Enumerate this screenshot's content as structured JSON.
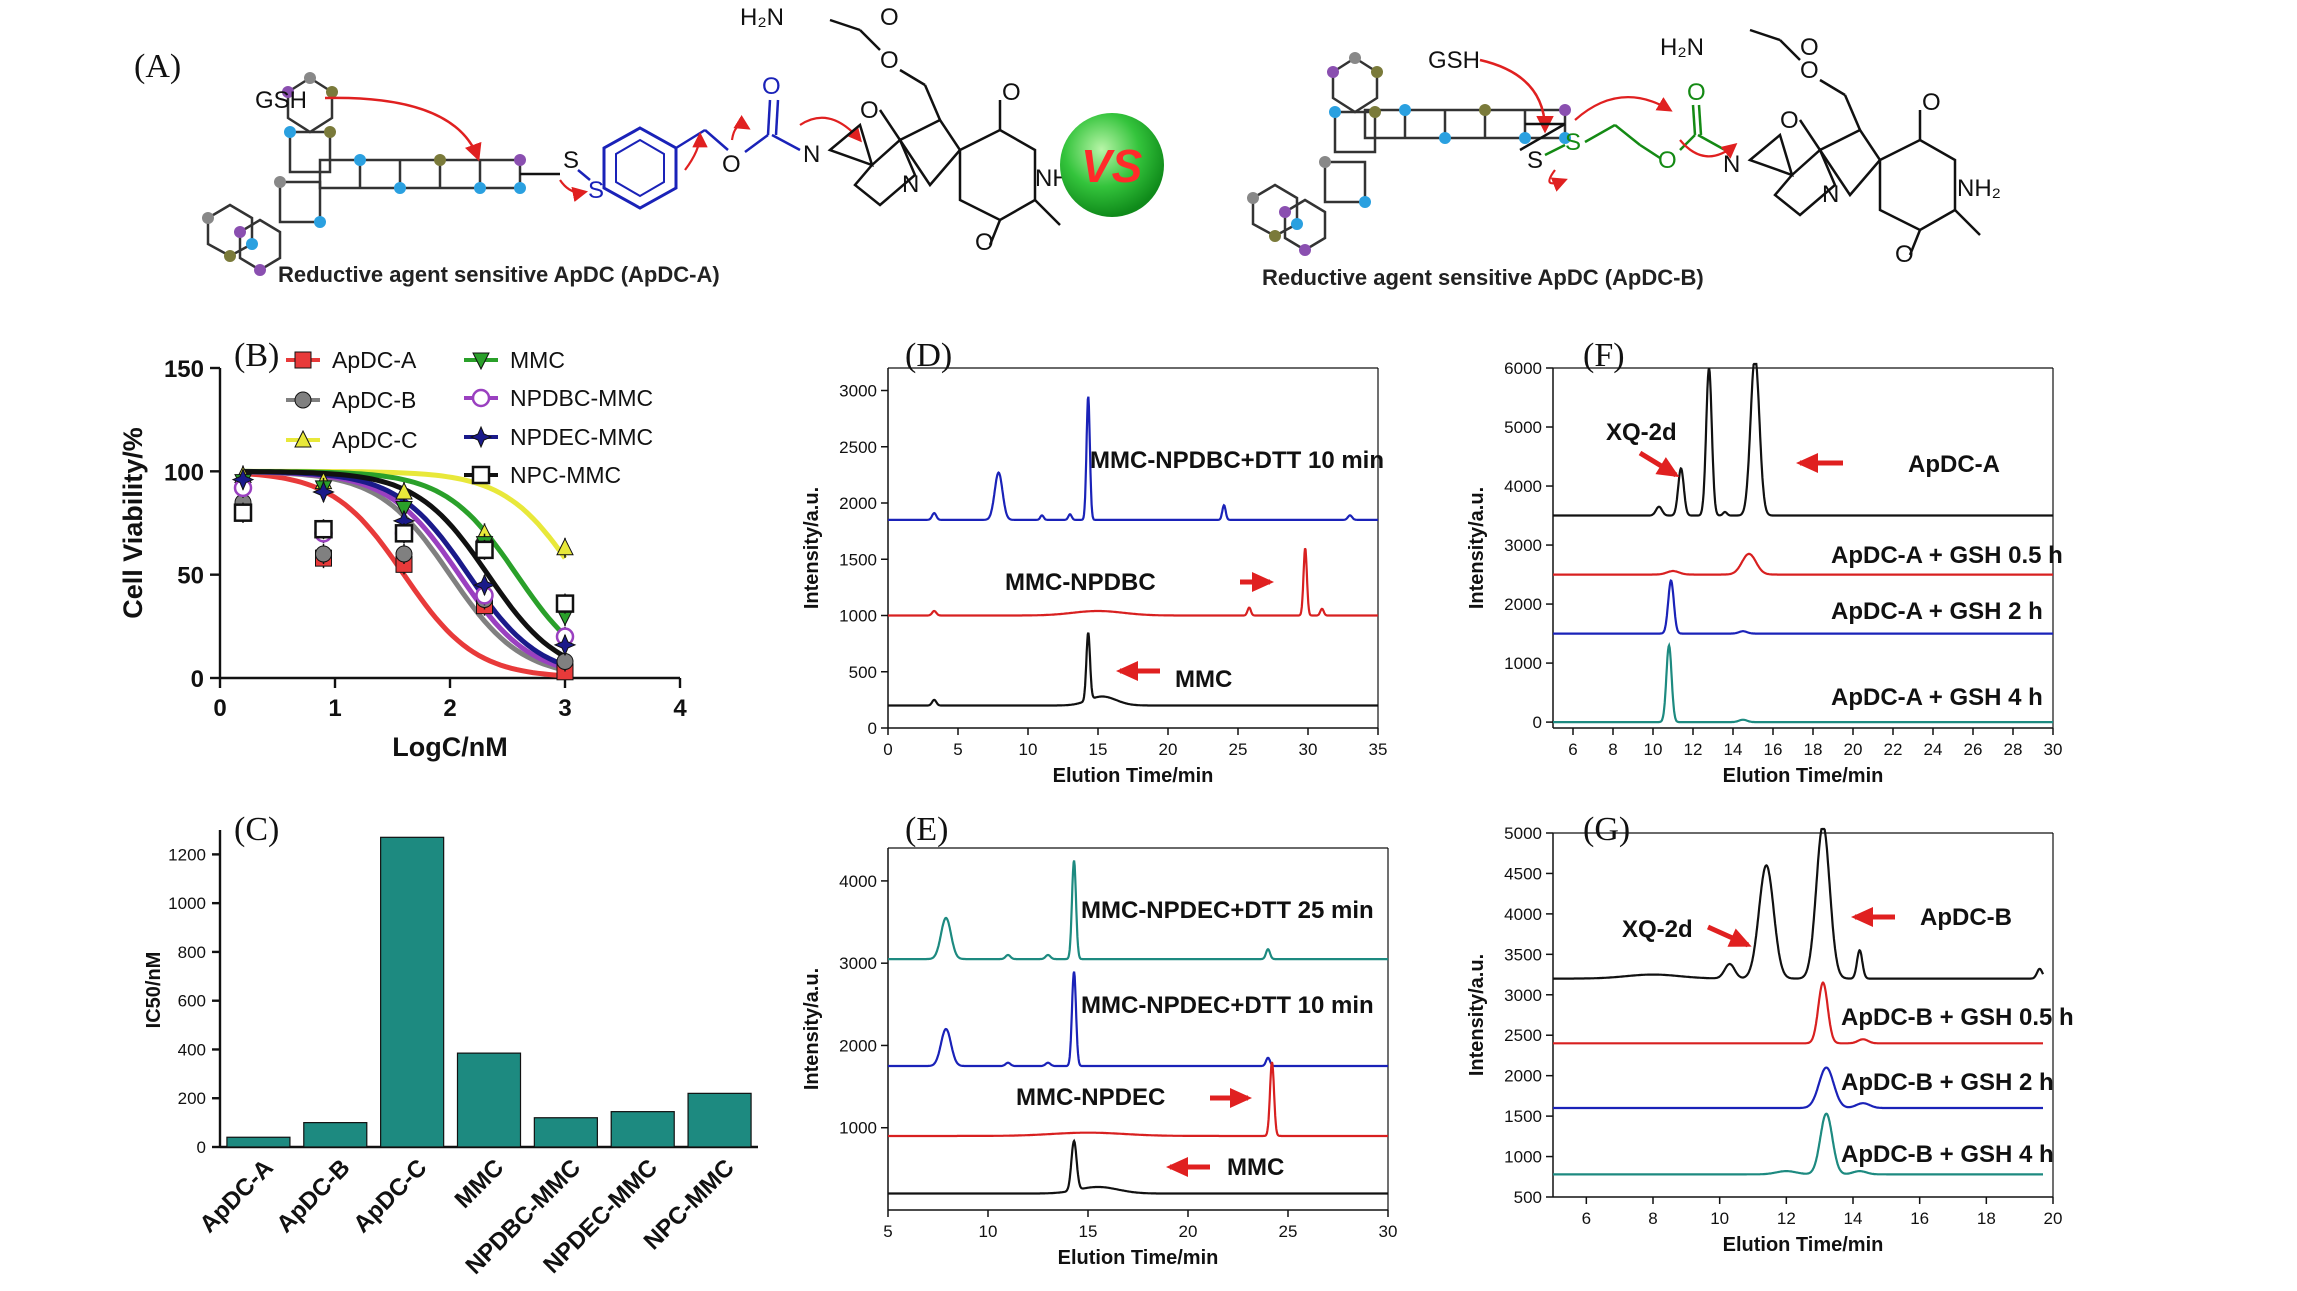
{
  "panel_labels": {
    "a": "(A)",
    "b": "(B)",
    "c": "(C)",
    "d": "(D)",
    "e": "(E)",
    "f": "(F)",
    "g": "(G)"
  },
  "scheme": {
    "gsh_label": "GSH",
    "vs_label": "VS",
    "nh2": "NH₂",
    "h2n": "H₂N",
    "caption_a": "Reductive agent sensitive ApDC (ApDC-A)",
    "caption_b": "Reductive agent sensitive ApDC (ApDC-B)",
    "atoms": {
      "s": "S",
      "o": "O",
      "n": "N"
    },
    "colors": {
      "linker_a": "#1a22b8",
      "linker_b": "#148a14",
      "arrow": "#e02020",
      "vs_ball": "#2ec43a"
    }
  },
  "chart_data": [
    {
      "id": "B",
      "type": "scatter",
      "title": "",
      "xlabel": "LogC/nM",
      "ylabel": "Cell Viability/%",
      "xlim": [
        0,
        4
      ],
      "ylim": [
        0,
        150
      ],
      "xticks": [
        "0",
        "1",
        "2",
        "3",
        "4"
      ],
      "yticks": [
        "0",
        "50",
        "100",
        "150"
      ],
      "legend": [
        "ApDC-A",
        "ApDC-B",
        "ApDC-C",
        "MMC",
        "NPDBC-MMC",
        "NPDEC-MMC",
        "NPC-MMC"
      ],
      "x": [
        0.2,
        0.9,
        1.6,
        2.3,
        3.0
      ],
      "series": [
        {
          "name": "ApDC-A",
          "color": "#e83a3a",
          "marker": "square",
          "values": [
            80,
            58,
            55,
            35,
            3
          ],
          "ic50_log": 1.6
        },
        {
          "name": "ApDC-B",
          "color": "#808080",
          "marker": "circle",
          "values": [
            85,
            60,
            60,
            38,
            8
          ],
          "ic50_log": 2.0
        },
        {
          "name": "ApDC-C",
          "color": "#e8e83a",
          "marker": "triangle",
          "values": [
            98,
            95,
            90,
            70,
            63
          ],
          "ic50_log": 3.1
        },
        {
          "name": "MMC",
          "color": "#2aa02a",
          "marker": "tri-down",
          "values": [
            95,
            92,
            82,
            65,
            30
          ],
          "ic50_log": 2.58
        },
        {
          "name": "NPDBC-MMC",
          "color": "#9a40c0",
          "marker": "circle-open",
          "values": [
            92,
            70,
            70,
            40,
            20
          ],
          "ic50_log": 2.08
        },
        {
          "name": "NPDEC-MMC",
          "color": "#1a1a8a",
          "marker": "star",
          "values": [
            96,
            90,
            76,
            45,
            16
          ],
          "ic50_log": 2.16
        },
        {
          "name": "NPC-MMC",
          "color": "#111111",
          "marker": "square-open",
          "values": [
            80,
            72,
            70,
            62,
            36
          ],
          "ic50_log": 2.33
        }
      ]
    },
    {
      "id": "C",
      "type": "bar",
      "xlabel": "",
      "ylabel": "IC50/nM",
      "ylim": [
        0,
        1300
      ],
      "yticks": [
        "0",
        "200",
        "400",
        "600",
        "800",
        "1000",
        "1200"
      ],
      "categories": [
        "ApDC-A",
        "ApDC-B",
        "ApDC-C",
        "MMC",
        "NPDBC-MMC",
        "NPDEC-MMC",
        "NPC-MMC"
      ],
      "values": [
        40,
        100,
        1270,
        385,
        120,
        145,
        220
      ],
      "color": "#1d8a80"
    },
    {
      "id": "D",
      "type": "line",
      "xlabel": "Elution Time/min",
      "ylabel": "Intensity/a.u.",
      "xlim": [
        0,
        35
      ],
      "ylim": [
        0,
        3200
      ],
      "xticks": [
        "0",
        "5",
        "10",
        "15",
        "20",
        "25",
        "30",
        "35"
      ],
      "yticks": [
        "0",
        "500",
        "1000",
        "1500",
        "2000",
        "2500",
        "3000"
      ],
      "series": [
        {
          "name": "MMC-NPDBC+DTT 10 min",
          "color": "#1a22b8",
          "baseline": 1850,
          "x_end": 35,
          "peaks": [
            [
              3.3,
              60,
              0.15
            ],
            [
              7.9,
              420,
              0.28
            ],
            [
              11,
              40,
              0.12
            ],
            [
              13,
              50,
              0.12
            ],
            [
              14.3,
              1100,
              0.12
            ],
            [
              24,
              130,
              0.12
            ],
            [
              33,
              40,
              0.15
            ]
          ]
        },
        {
          "name": "MMC-NPDBC",
          "color": "#d82020",
          "baseline": 1000,
          "x_end": 35,
          "peaks": [
            [
              3.3,
              40,
              0.15
            ],
            [
              15,
              40,
              1.8
            ],
            [
              25.8,
              70,
              0.12
            ],
            [
              29.8,
              600,
              0.12
            ],
            [
              31,
              60,
              0.12
            ]
          ]
        },
        {
          "name": "MMC",
          "color": "#111111",
          "baseline": 200,
          "x_end": 35,
          "peaks": [
            [
              3.3,
              50,
              0.15
            ],
            [
              14.3,
              600,
              0.13
            ],
            [
              15.3,
              80,
              1.0
            ]
          ]
        }
      ],
      "annotations": [
        "MMC-NPDBC+DTT 10 min",
        "MMC-NPDBC",
        "MMC"
      ]
    },
    {
      "id": "E",
      "type": "line",
      "xlabel": "Elution Time/min",
      "ylabel": "Intensity/a.u.",
      "xlim": [
        5,
        30
      ],
      "ylim": [
        0,
        4400
      ],
      "xticks": [
        "5",
        "10",
        "15",
        "20",
        "25",
        "30"
      ],
      "yticks": [
        "1000",
        "2000",
        "3000",
        "4000"
      ],
      "series": [
        {
          "name": "MMC-NPDEC+DTT 25 min",
          "color": "#1d8a80",
          "baseline": 3050,
          "x_end": 30,
          "peaks": [
            [
              7.9,
              500,
              0.25
            ],
            [
              11,
              50,
              0.12
            ],
            [
              13,
              50,
              0.12
            ],
            [
              14.3,
              1200,
              0.1
            ],
            [
              24,
              120,
              0.1
            ]
          ]
        },
        {
          "name": "MMC-NPDEC+DTT 10 min",
          "color": "#1a22b8",
          "baseline": 1750,
          "x_end": 30,
          "peaks": [
            [
              7.9,
              450,
              0.25
            ],
            [
              11,
              40,
              0.12
            ],
            [
              13,
              40,
              0.12
            ],
            [
              14.3,
              1150,
              0.1
            ],
            [
              24,
              100,
              0.1
            ]
          ]
        },
        {
          "name": "MMC-NPDEC",
          "color": "#d82020",
          "baseline": 900,
          "x_end": 30,
          "peaks": [
            [
              15,
              40,
              1.8
            ],
            [
              24.2,
              900,
              0.1
            ]
          ]
        },
        {
          "name": "MMC",
          "color": "#111111",
          "baseline": 200,
          "x_end": 30,
          "peaks": [
            [
              14.3,
              600,
              0.13
            ],
            [
              15.5,
              80,
              1.0
            ]
          ]
        }
      ],
      "annotations": [
        "MMC-NPDEC+DTT 25 min",
        "MMC-NPDEC+DTT 10 min",
        "MMC-NPDEC",
        "MMC"
      ]
    },
    {
      "id": "F",
      "type": "line",
      "xlabel": "Elution Time/min",
      "ylabel": "Intensity/a.u.",
      "xlim": [
        5,
        30
      ],
      "ylim": [
        -100,
        6000
      ],
      "xticks": [
        "6",
        "8",
        "10",
        "12",
        "14",
        "16",
        "18",
        "20",
        "22",
        "24",
        "26",
        "28",
        "30"
      ],
      "yticks": [
        "0",
        "1000",
        "2000",
        "3000",
        "4000",
        "5000",
        "6000"
      ],
      "series": [
        {
          "name": "ApDC-A",
          "color": "#111111",
          "baseline": 3500,
          "x_end": 30,
          "peaks": [
            [
              10.3,
              150,
              0.15
            ],
            [
              11.4,
              800,
              0.14
            ],
            [
              12.8,
              2500,
              0.14
            ],
            [
              13.6,
              60,
              0.1
            ],
            [
              15.1,
              2700,
              0.22
            ]
          ]
        },
        {
          "name": "ApDC-A + GSH 0.5 h",
          "color": "#d82020",
          "baseline": 2500,
          "x_end": 30,
          "peaks": [
            [
              11,
              60,
              0.3
            ],
            [
              14.8,
              350,
              0.35
            ]
          ]
        },
        {
          "name": "ApDC-A + GSH 2 h",
          "color": "#1a22b8",
          "baseline": 1500,
          "x_end": 30,
          "peaks": [
            [
              10.9,
              900,
              0.14
            ],
            [
              14.5,
              40,
              0.2
            ]
          ]
        },
        {
          "name": "ApDC-A + GSH 4 h",
          "color": "#1d8a80",
          "baseline": 0,
          "x_end": 30,
          "peaks": [
            [
              10.8,
              1300,
              0.13
            ],
            [
              14.5,
              40,
              0.2
            ]
          ]
        }
      ],
      "annotations": [
        "XQ-2d",
        "ApDC-A",
        "ApDC-A + GSH 0.5 h",
        "ApDC-A + GSH 2 h",
        "ApDC-A + GSH 4 h"
      ]
    },
    {
      "id": "G",
      "type": "line",
      "xlabel": "Elution Time/min",
      "ylabel": "Intensity/a.u.",
      "xlim": [
        5,
        20
      ],
      "ylim": [
        500,
        5000
      ],
      "xticks": [
        "6",
        "8",
        "10",
        "12",
        "14",
        "16",
        "18",
        "20"
      ],
      "yticks": [
        "500",
        "1000",
        "1500",
        "2000",
        "2500",
        "3000",
        "3500",
        "4000",
        "4500",
        "5000"
      ],
      "series": [
        {
          "name": "ApDC-B",
          "color": "#111111",
          "baseline": 3200,
          "x_end": 19.7,
          "peaks": [
            [
              8,
              50,
              0.8
            ],
            [
              10.3,
              180,
              0.15
            ],
            [
              11.4,
              1400,
              0.22
            ],
            [
              13.1,
              1900,
              0.2
            ],
            [
              14.2,
              350,
              0.08
            ],
            [
              19.6,
              120,
              0.08
            ]
          ]
        },
        {
          "name": "ApDC-B + GSH 0.5 h",
          "color": "#d82020",
          "baseline": 2400,
          "x_end": 19.7,
          "peaks": [
            [
              13.1,
              750,
              0.14
            ],
            [
              14.3,
              50,
              0.15
            ]
          ]
        },
        {
          "name": "ApDC-B + GSH 2 h",
          "color": "#1a22b8",
          "baseline": 1600,
          "x_end": 19.7,
          "peaks": [
            [
              13.2,
              500,
              0.22
            ],
            [
              14.3,
              60,
              0.2
            ]
          ]
        },
        {
          "name": "ApDC-B + GSH 4 h",
          "color": "#1d8a80",
          "baseline": 780,
          "x_end": 19.7,
          "peaks": [
            [
              12,
              40,
              0.3
            ],
            [
              13.2,
              750,
              0.18
            ],
            [
              14.2,
              40,
              0.2
            ]
          ]
        }
      ],
      "annotations": [
        "XQ-2d",
        "ApDC-B",
        "ApDC-B + GSH 0.5 h",
        "ApDC-B + GSH 2 h",
        "ApDC-B + GSH 4 h"
      ]
    }
  ]
}
